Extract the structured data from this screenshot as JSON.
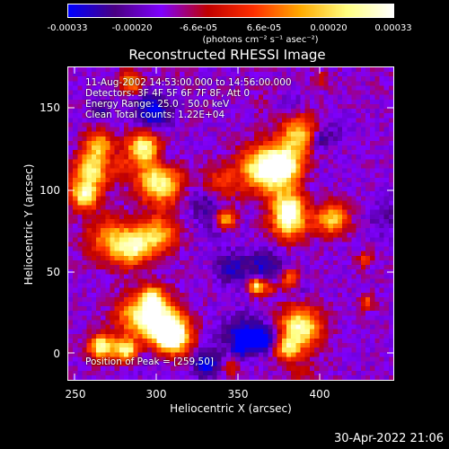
{
  "colorbar": {
    "ticks": [
      "-0.00033",
      "-0.00020",
      "-6.6e-05",
      "6.6e-05",
      "0.00020",
      "0.00033"
    ],
    "unit_text": "(photons cm⁻² s⁻¹ asec⁻²)",
    "colors": [
      "#0000ff",
      "#4b0082",
      "#7f00ff",
      "#c00000",
      "#ff3000",
      "#ffaa00",
      "#ffff80",
      "#ffffff"
    ]
  },
  "title": "Reconstructed RHESSI Image",
  "info": {
    "time": "11-Aug-2002 14:53:00.000 to 14:56:00.000",
    "detectors": "Detectors: 3F 4F 5F 6F 7F 8F, Att 0",
    "energy": "Energy Range: 25.0 - 50.0 keV",
    "clean": "Clean     Total counts: 1.22E+04",
    "peak": "Position of Peak = [259,50]"
  },
  "x_axis": {
    "label": "Heliocentric X (arcsec)",
    "ticks": [
      "250",
      "300",
      "350",
      "400"
    ]
  },
  "y_axis": {
    "label": "Heliocentric Y (arcsec)",
    "ticks": [
      "0",
      "50",
      "100",
      "150"
    ]
  },
  "footer": "30-Apr-2022 21:06"
}
